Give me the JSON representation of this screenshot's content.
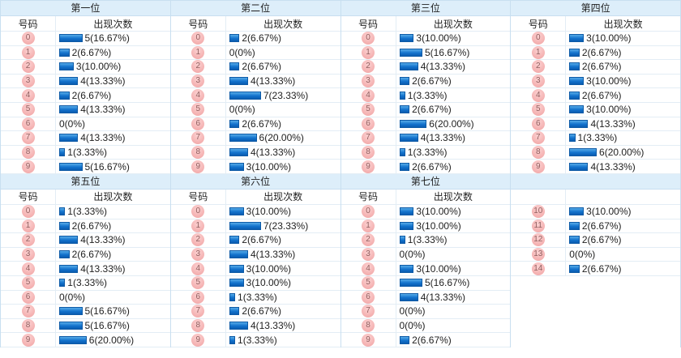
{
  "page": {
    "background": "#ffffff"
  },
  "colors": {
    "band_bg": "#ddeefa",
    "outer_border": "#c8dff0",
    "row_border": "#e3edf5",
    "bar_top": "#55aae8",
    "bar_bottom": "#0a5cb0",
    "bar_border": "#0d5aa6",
    "badge_bg": "#f4b0b0",
    "badge_text": "#8f5f5f",
    "text": "#1f1f1f"
  },
  "chart_data": {
    "type": "bar",
    "orientation": "horizontal",
    "unit": "出现次数 (count and percent of 30 draws)",
    "rows_per_panel": 10,
    "panels": [
      {
        "title": "第一位",
        "headers": {
          "number": "号码",
          "count": "出现次数"
        },
        "rows": [
          {
            "number": "0",
            "count": 5,
            "label": "5(16.67%)"
          },
          {
            "number": "1",
            "count": 2,
            "label": "2(6.67%)"
          },
          {
            "number": "2",
            "count": 3,
            "label": "3(10.00%)"
          },
          {
            "number": "3",
            "count": 4,
            "label": "4(13.33%)"
          },
          {
            "number": "4",
            "count": 2,
            "label": "2(6.67%)"
          },
          {
            "number": "5",
            "count": 4,
            "label": "4(13.33%)"
          },
          {
            "number": "6",
            "count": 0,
            "label": "0(0%)"
          },
          {
            "number": "7",
            "count": 4,
            "label": "4(13.33%)"
          },
          {
            "number": "8",
            "count": 1,
            "label": "1(3.33%)"
          },
          {
            "number": "9",
            "count": 5,
            "label": "5(16.67%)"
          }
        ]
      },
      {
        "title": "第二位",
        "headers": {
          "number": "号码",
          "count": "出现次数"
        },
        "rows": [
          {
            "number": "0",
            "count": 2,
            "label": "2(6.67%)"
          },
          {
            "number": "1",
            "count": 0,
            "label": "0(0%)"
          },
          {
            "number": "2",
            "count": 2,
            "label": "2(6.67%)"
          },
          {
            "number": "3",
            "count": 4,
            "label": "4(13.33%)"
          },
          {
            "number": "4",
            "count": 7,
            "label": "7(23.33%)"
          },
          {
            "number": "5",
            "count": 0,
            "label": "0(0%)"
          },
          {
            "number": "6",
            "count": 2,
            "label": "2(6.67%)"
          },
          {
            "number": "7",
            "count": 6,
            "label": "6(20.00%)"
          },
          {
            "number": "8",
            "count": 4,
            "label": "4(13.33%)"
          },
          {
            "number": "9",
            "count": 3,
            "label": "3(10.00%)"
          }
        ]
      },
      {
        "title": "第三位",
        "headers": {
          "number": "号码",
          "count": "出现次数"
        },
        "rows": [
          {
            "number": "0",
            "count": 3,
            "label": "3(10.00%)"
          },
          {
            "number": "1",
            "count": 5,
            "label": "5(16.67%)"
          },
          {
            "number": "2",
            "count": 4,
            "label": "4(13.33%)"
          },
          {
            "number": "3",
            "count": 2,
            "label": "2(6.67%)"
          },
          {
            "number": "4",
            "count": 1,
            "label": "1(3.33%)"
          },
          {
            "number": "5",
            "count": 2,
            "label": "2(6.67%)"
          },
          {
            "number": "6",
            "count": 6,
            "label": "6(20.00%)"
          },
          {
            "number": "7",
            "count": 4,
            "label": "4(13.33%)"
          },
          {
            "number": "8",
            "count": 1,
            "label": "1(3.33%)"
          },
          {
            "number": "9",
            "count": 2,
            "label": "2(6.67%)"
          }
        ]
      },
      {
        "title": "第四位",
        "headers": {
          "number": "号码",
          "count": "出现次数"
        },
        "rows": [
          {
            "number": "0",
            "count": 3,
            "label": "3(10.00%)"
          },
          {
            "number": "1",
            "count": 2,
            "label": "2(6.67%)"
          },
          {
            "number": "2",
            "count": 2,
            "label": "2(6.67%)"
          },
          {
            "number": "3",
            "count": 3,
            "label": "3(10.00%)"
          },
          {
            "number": "4",
            "count": 2,
            "label": "2(6.67%)"
          },
          {
            "number": "5",
            "count": 3,
            "label": "3(10.00%)"
          },
          {
            "number": "6",
            "count": 4,
            "label": "4(13.33%)"
          },
          {
            "number": "7",
            "count": 1,
            "label": "1(3.33%)"
          },
          {
            "number": "8",
            "count": 6,
            "label": "6(20.00%)"
          },
          {
            "number": "9",
            "count": 4,
            "label": "4(13.33%)"
          }
        ]
      },
      {
        "title": "第五位",
        "headers": {
          "number": "号码",
          "count": "出现次数"
        },
        "rows": [
          {
            "number": "0",
            "count": 1,
            "label": "1(3.33%)"
          },
          {
            "number": "1",
            "count": 2,
            "label": "2(6.67%)"
          },
          {
            "number": "2",
            "count": 4,
            "label": "4(13.33%)"
          },
          {
            "number": "3",
            "count": 2,
            "label": "2(6.67%)"
          },
          {
            "number": "4",
            "count": 4,
            "label": "4(13.33%)"
          },
          {
            "number": "5",
            "count": 1,
            "label": "1(3.33%)"
          },
          {
            "number": "6",
            "count": 0,
            "label": "0(0%)"
          },
          {
            "number": "7",
            "count": 5,
            "label": "5(16.67%)"
          },
          {
            "number": "8",
            "count": 5,
            "label": "5(16.67%)"
          },
          {
            "number": "9",
            "count": 6,
            "label": "6(20.00%)"
          }
        ]
      },
      {
        "title": "第六位",
        "headers": {
          "number": "号码",
          "count": "出现次数"
        },
        "rows": [
          {
            "number": "0",
            "count": 3,
            "label": "3(10.00%)"
          },
          {
            "number": "1",
            "count": 7,
            "label": "7(23.33%)"
          },
          {
            "number": "2",
            "count": 2,
            "label": "2(6.67%)"
          },
          {
            "number": "3",
            "count": 4,
            "label": "4(13.33%)"
          },
          {
            "number": "4",
            "count": 3,
            "label": "3(10.00%)"
          },
          {
            "number": "5",
            "count": 3,
            "label": "3(10.00%)"
          },
          {
            "number": "6",
            "count": 1,
            "label": "1(3.33%)"
          },
          {
            "number": "7",
            "count": 2,
            "label": "2(6.67%)"
          },
          {
            "number": "8",
            "count": 4,
            "label": "4(13.33%)"
          },
          {
            "number": "9",
            "count": 1,
            "label": "1(3.33%)"
          }
        ]
      },
      {
        "title": "第七位",
        "headers": {
          "number": "号码",
          "count": "出现次数"
        },
        "rows": [
          {
            "number": "0",
            "count": 3,
            "label": "3(10.00%)"
          },
          {
            "number": "1",
            "count": 3,
            "label": "3(10.00%)"
          },
          {
            "number": "2",
            "count": 1,
            "label": "1(3.33%)"
          },
          {
            "number": "3",
            "count": 0,
            "label": "0(0%)"
          },
          {
            "number": "4",
            "count": 3,
            "label": "3(10.00%)"
          },
          {
            "number": "5",
            "count": 5,
            "label": "5(16.67%)"
          },
          {
            "number": "6",
            "count": 4,
            "label": "4(13.33%)"
          },
          {
            "number": "7",
            "count": 0,
            "label": "0(0%)"
          },
          {
            "number": "8",
            "count": 0,
            "label": "0(0%)"
          },
          {
            "number": "9",
            "count": 2,
            "label": "2(6.67%)"
          }
        ]
      },
      {
        "title": "",
        "headers": {
          "number": "",
          "count": ""
        },
        "rows": [
          {
            "number": "10",
            "count": 3,
            "label": "3(10.00%)"
          },
          {
            "number": "11",
            "count": 2,
            "label": "2(6.67%)"
          },
          {
            "number": "12",
            "count": 2,
            "label": "2(6.67%)"
          },
          {
            "number": "13",
            "count": 0,
            "label": "0(0%)"
          },
          {
            "number": "14",
            "count": 2,
            "label": "2(6.67%)"
          }
        ]
      }
    ]
  }
}
